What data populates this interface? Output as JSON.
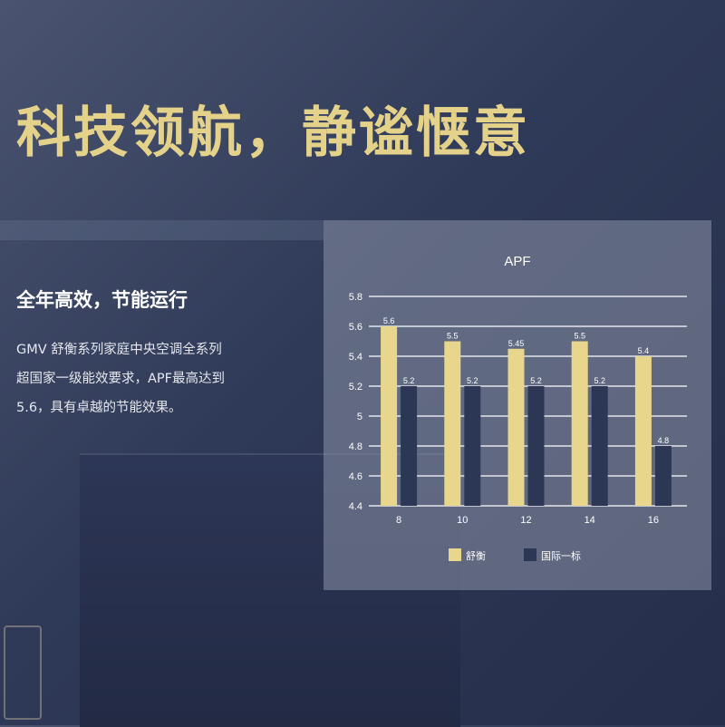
{
  "headline": "科技领航，静谧惬意",
  "section": {
    "title": "全年高效，节能运行",
    "lines": [
      "GMV 舒衡系列家庭中央空调全系列",
      "超国家一级能效要求，APF最高达到",
      "5.6，具有卓越的节能效果。"
    ]
  },
  "chart_data": {
    "type": "bar",
    "title": "APF",
    "categories": [
      "8",
      "10",
      "12",
      "14",
      "16"
    ],
    "series": [
      {
        "name": "舒衡",
        "values": [
          5.6,
          5.5,
          5.45,
          5.5,
          5.4
        ],
        "color": "#e8d68c"
      },
      {
        "name": "国际一标",
        "values": [
          5.2,
          5.2,
          5.2,
          5.2,
          4.8
        ],
        "color": "#2b3754"
      }
    ],
    "ylim": [
      4.4,
      5.8
    ],
    "yticks": [
      "4.4",
      "4.6",
      "4.8",
      "5",
      "5.2",
      "5.4",
      "5.6",
      "5.8"
    ],
    "grid": true,
    "legend": "bottom"
  }
}
